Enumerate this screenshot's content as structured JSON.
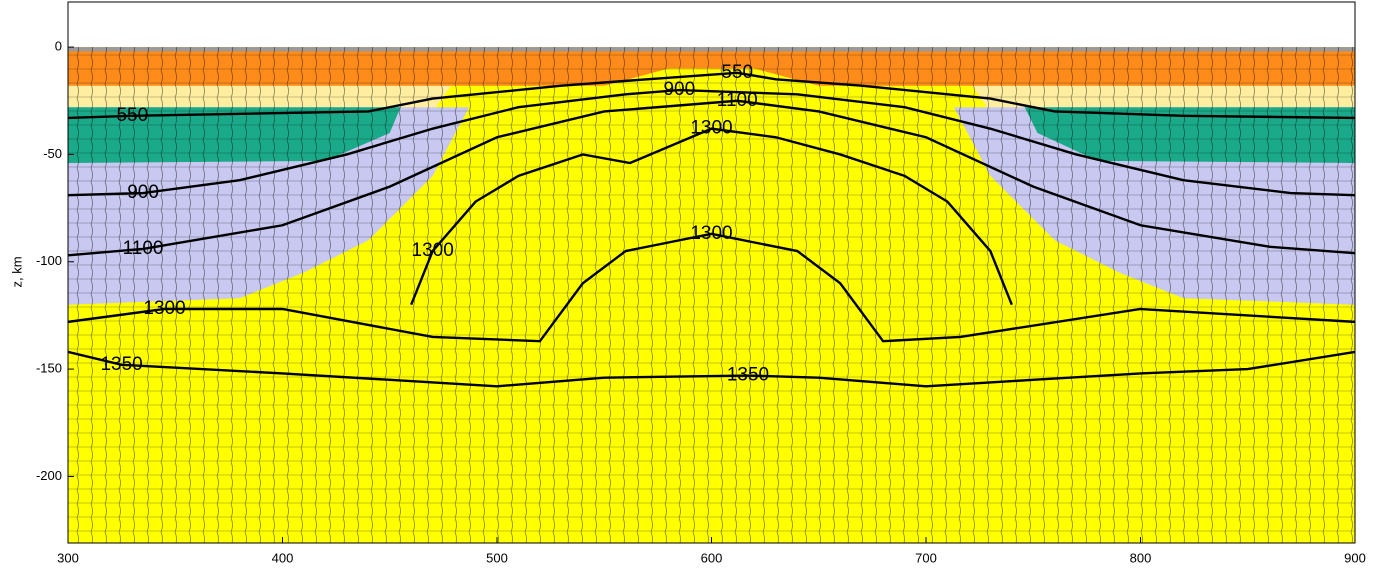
{
  "chart_data": {
    "type": "contour",
    "ylabel": "z, km",
    "xlim": [
      300,
      900
    ],
    "ylim": [
      -231,
      21
    ],
    "xticks": [
      300,
      400,
      500,
      600,
      700,
      800,
      900
    ],
    "yticks": [
      0,
      -50,
      -100,
      -150,
      -200
    ],
    "regions": [
      {
        "color": "#ffff00",
        "x": [
          300,
          900,
          900,
          300
        ],
        "y": [
          0,
          0,
          -231,
          -231
        ]
      },
      {
        "color": "#ffeea0",
        "x": [
          300,
          480,
          470,
          300
        ],
        "y": [
          -16,
          -16,
          -30,
          -30
        ]
      },
      {
        "color": "#ffeea0",
        "x": [
          720,
          900,
          900,
          730
        ],
        "y": [
          -16,
          -16,
          -30,
          -30
        ]
      },
      {
        "color": "#c8c8f0",
        "x": [
          300,
          440,
          487,
          470,
          440,
          410,
          380,
          300
        ],
        "y": [
          -28,
          -28,
          -28,
          -60,
          -90,
          -105,
          -117,
          -120
        ]
      },
      {
        "color": "#c8c8f0",
        "x": [
          900,
          760,
          713,
          730,
          760,
          790,
          820,
          900
        ],
        "y": [
          -28,
          -28,
          -28,
          -60,
          -90,
          -105,
          -117,
          -120
        ]
      },
      {
        "color": "#1aaa8a",
        "x": [
          300,
          455,
          450,
          420,
          300
        ],
        "y": [
          -28,
          -28,
          -40,
          -53,
          -54
        ]
      },
      {
        "color": "#1aaa8a",
        "x": [
          900,
          746,
          752,
          780,
          900
        ],
        "y": [
          -28,
          -28,
          -40,
          -53,
          -54
        ]
      },
      {
        "color": "#ff8c1a",
        "x": [
          300,
          550,
          580,
          620,
          650,
          900,
          900,
          650,
          620,
          580,
          550,
          300
        ],
        "y": [
          0,
          0,
          0,
          0,
          0,
          0,
          -18,
          -18,
          -10,
          -10,
          -18,
          -18
        ]
      },
      {
        "color": "#9a9a9a",
        "x": [
          300,
          900,
          900,
          300
        ],
        "y": [
          0,
          0,
          -2,
          -2
        ]
      }
    ],
    "isotherms": [
      {
        "value": 550,
        "x": [
          300,
          330,
          440,
          470,
          530,
          570,
          612,
          630,
          670,
          730,
          760,
          820,
          900
        ],
        "y": [
          -33,
          -32,
          -30,
          -24,
          -18,
          -15,
          -12,
          -15,
          -18,
          -24,
          -30,
          -32,
          -33
        ]
      },
      {
        "value": 900,
        "x": [
          300,
          335,
          380,
          430,
          470,
          510,
          560,
          585,
          640,
          690,
          730,
          770,
          820,
          870,
          900
        ],
        "y": [
          -69,
          -68,
          -62,
          -50,
          -38,
          -28,
          -22,
          -20,
          -22,
          -28,
          -38,
          -50,
          -62,
          -68,
          -69
        ]
      },
      {
        "value": 1100,
        "x": [
          300,
          335,
          400,
          450,
          500,
          550,
          612,
          650,
          700,
          750,
          800,
          860,
          900
        ],
        "y": [
          -97,
          -94,
          -83,
          -65,
          -42,
          -30,
          -25,
          -30,
          -42,
          -65,
          -83,
          -93,
          -96
        ]
      },
      {
        "value": 1300,
        "x": [
          300,
          345,
          400,
          470,
          520,
          540,
          560,
          600,
          640,
          660,
          680,
          716,
          800,
          900
        ],
        "y": [
          -128,
          -122,
          -122,
          -135,
          -137,
          -110,
          -95,
          -87,
          -95,
          -110,
          -137,
          -135,
          -122,
          -128
        ]
      },
      {
        "value": 1300,
        "x": [
          460,
          470,
          490,
          510,
          540,
          562,
          600,
          630,
          660,
          690,
          710,
          730,
          740
        ],
        "y": [
          -120,
          -95,
          -72,
          -60,
          -50,
          -54,
          -38,
          -42,
          -50,
          -60,
          -72,
          -95,
          -120
        ]
      },
      {
        "value": 1350,
        "x": [
          300,
          325,
          400,
          450,
          500,
          550,
          617,
          650,
          700,
          750,
          800,
          850,
          900
        ],
        "y": [
          -142,
          -148,
          -152,
          -155,
          -158,
          -154,
          -153,
          -154,
          -158,
          -155,
          -152,
          -150,
          -142
        ]
      }
    ]
  }
}
